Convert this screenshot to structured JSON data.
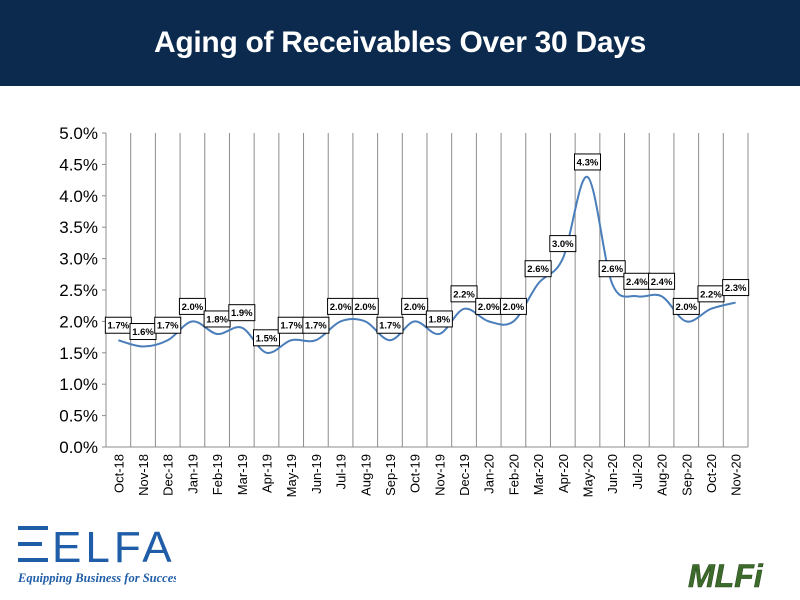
{
  "header": {
    "title": "Aging of Receivables Over 30 Days"
  },
  "logos": {
    "elfa": {
      "wordmark": "ELFA",
      "tagline": "Equipping Business for Success"
    },
    "mlfi": {
      "wordmark": "MLFi"
    }
  },
  "colors": {
    "header_bg": "#0b2a4e",
    "line": "#4a7ebb",
    "elfa_blue": "#1f5da8",
    "mlfi_green": "#3d6b2c"
  },
  "chart_data": {
    "type": "line",
    "title": "Aging of Receivables Over 30 Days",
    "xlabel": "",
    "ylabel": "",
    "ylim": [
      0,
      5.0
    ],
    "y_ticks": [
      "0.0%",
      "0.5%",
      "1.0%",
      "1.5%",
      "2.0%",
      "2.5%",
      "3.0%",
      "3.5%",
      "4.0%",
      "4.5%",
      "5.0%"
    ],
    "grid": "vertical",
    "legend": "none",
    "categories": [
      "Oct-18",
      "Nov-18",
      "Dec-18",
      "Jan-19",
      "Feb-19",
      "Mar-19",
      "Apr-19",
      "May-19",
      "Jun-19",
      "Jul-19",
      "Aug-19",
      "Sep-19",
      "Oct-19",
      "Nov-19",
      "Dec-19",
      "Jan-20",
      "Feb-20",
      "Mar-20",
      "Apr-20",
      "May-20",
      "Jun-20",
      "Jul-20",
      "Aug-20",
      "Sep-20",
      "Oct-20",
      "Nov-20"
    ],
    "values": [
      1.7,
      1.6,
      1.7,
      2.0,
      1.8,
      1.9,
      1.5,
      1.7,
      1.7,
      2.0,
      2.0,
      1.7,
      2.0,
      1.8,
      2.2,
      2.0,
      2.0,
      2.6,
      3.0,
      4.3,
      2.6,
      2.4,
      2.4,
      2.0,
      2.2,
      2.3
    ],
    "data_labels": [
      "1.7%",
      "1.6%",
      "1.7%",
      "2.0%",
      "1.8%",
      "1.9%",
      "1.5%",
      "1.7%",
      "1.7%",
      "2.0%",
      "2.0%",
      "1.7%",
      "2.0%",
      "1.8%",
      "2.2%",
      "2.0%",
      "2.0%",
      "2.6%",
      "3.0%",
      "4.3%",
      "2.6%",
      "2.4%",
      "2.4%",
      "2.0%",
      "2.2%",
      "2.3%"
    ]
  }
}
